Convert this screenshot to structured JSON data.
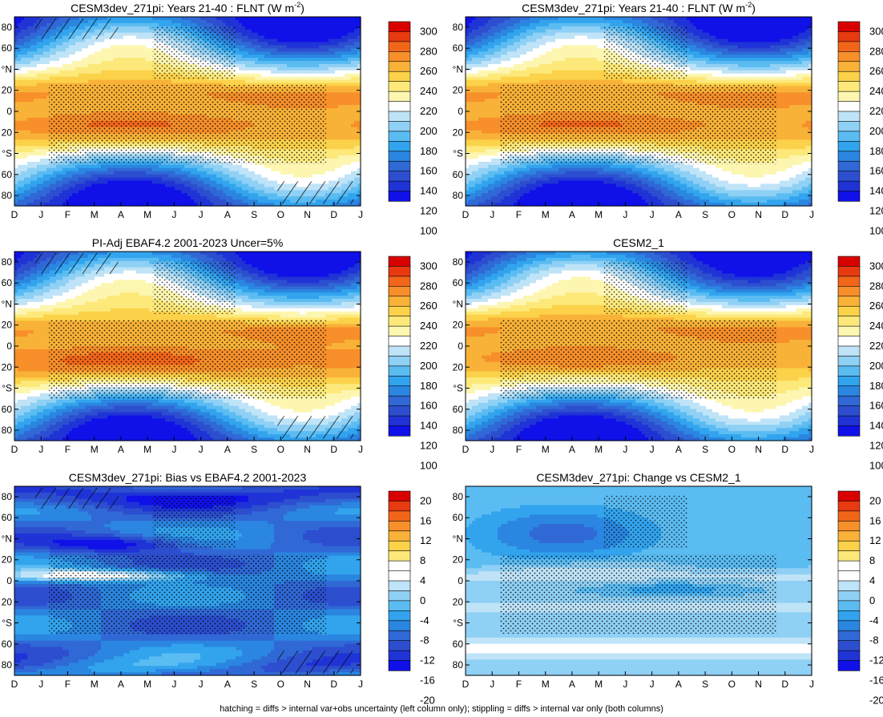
{
  "figure_caption": "hatching = diffs > internal var+obs uncertainty (left column only); stippling = diffs > internal var only (both columns)",
  "colorbars": {
    "absolute": {
      "labels": [
        "300",
        "280",
        "260",
        "240",
        "220",
        "200",
        "180",
        "160",
        "140",
        "120",
        "100"
      ],
      "colors": [
        "#d90000",
        "#e83a10",
        "#f2661a",
        "#f78f2a",
        "#f9b238",
        "#fbd24a",
        "#fde97a",
        "#fdf6b0",
        "#ffffff",
        "#bfe3f7",
        "#8fd0f5",
        "#5bbcf2",
        "#32a4ee",
        "#2a86e0",
        "#3068d6",
        "#2c4ecf",
        "#1f33d6",
        "#1010e8"
      ]
    },
    "difference": {
      "labels": [
        "20",
        "16",
        "12",
        "8",
        "4",
        "0",
        "-4",
        "-8",
        "-12",
        "-16",
        "-20"
      ],
      "colors": [
        "#d90000",
        "#e83a10",
        "#f2661a",
        "#f78f2a",
        "#f9b238",
        "#fbd24a",
        "#fde97a",
        "#ffffff",
        "#ffffff",
        "#bfe3f7",
        "#8fd0f5",
        "#5bbcf2",
        "#32a4ee",
        "#2a86e0",
        "#3068d6",
        "#2c4ecf",
        "#1f33d6",
        "#1010e8"
      ]
    }
  },
  "chart_data": [
    {
      "type": "heatmap",
      "title": "CESM3dev_271pi: Years 21-40 : FLNT (W m",
      "title_sup": "-2",
      "title_end": ")",
      "x_tick_labels": [
        "D",
        "J",
        "F",
        "M",
        "A",
        "M",
        "J",
        "J",
        "A",
        "S",
        "O",
        "N",
        "D",
        "J"
      ],
      "y_tick_labels": [
        "80",
        "60",
        "°N",
        "20",
        "0",
        "20",
        "°S",
        "60",
        "80"
      ],
      "ylim": [
        -90,
        90
      ],
      "colorbar": "absolute",
      "field": "olr_cesm3",
      "hatching": true,
      "stippling": true
    },
    {
      "type": "heatmap",
      "title": "CESM3dev_271pi: Years 21-40 : FLNT (W m",
      "title_sup": "-2",
      "title_end": ")",
      "x_tick_labels": [
        "D",
        "J",
        "F",
        "M",
        "A",
        "M",
        "J",
        "J",
        "A",
        "S",
        "O",
        "N",
        "D",
        "J"
      ],
      "y_tick_labels": [
        "80",
        "60",
        "°N",
        "20",
        "0",
        "20",
        "°S",
        "60",
        "80"
      ],
      "ylim": [
        -90,
        90
      ],
      "colorbar": "absolute",
      "field": "olr_cesm3",
      "hatching": false,
      "stippling": true
    },
    {
      "type": "heatmap",
      "title": "PI-Adj EBAF4.2 2001-2023 Uncer=5%",
      "title_sup": "",
      "title_end": "",
      "x_tick_labels": [
        "D",
        "J",
        "F",
        "M",
        "A",
        "M",
        "J",
        "J",
        "A",
        "S",
        "O",
        "N",
        "D",
        "J"
      ],
      "y_tick_labels": [
        "80",
        "60",
        "°N",
        "20",
        "0",
        "20",
        "°S",
        "60",
        "80"
      ],
      "ylim": [
        -90,
        90
      ],
      "colorbar": "absolute",
      "field": "olr_obs",
      "hatching": true,
      "stippling": true
    },
    {
      "type": "heatmap",
      "title": "CESM2_1",
      "title_sup": "",
      "title_end": "",
      "x_tick_labels": [
        "D",
        "J",
        "F",
        "M",
        "A",
        "M",
        "J",
        "J",
        "A",
        "S",
        "O",
        "N",
        "D",
        "J"
      ],
      "y_tick_labels": [
        "80",
        "60",
        "°N",
        "20",
        "0",
        "20",
        "°S",
        "60",
        "80"
      ],
      "ylim": [
        -90,
        90
      ],
      "colorbar": "absolute",
      "field": "olr_cesm2",
      "hatching": false,
      "stippling": true
    },
    {
      "type": "heatmap",
      "title": "CESM3dev_271pi: Bias vs EBAF4.2 2001-2023",
      "title_sup": "",
      "title_end": "",
      "x_tick_labels": [
        "D",
        "J",
        "F",
        "M",
        "A",
        "M",
        "J",
        "J",
        "A",
        "S",
        "O",
        "N",
        "D",
        "J"
      ],
      "y_tick_labels": [
        "80",
        "60",
        "°N",
        "20",
        "0",
        "20",
        "°S",
        "60",
        "80"
      ],
      "ylim": [
        -90,
        90
      ],
      "colorbar": "difference",
      "field": "bias_obs",
      "hatching": true,
      "stippling": true
    },
    {
      "type": "heatmap",
      "title": "CESM3dev_271pi: Change vs CESM2_1",
      "title_sup": "",
      "title_end": "",
      "x_tick_labels": [
        "D",
        "J",
        "F",
        "M",
        "A",
        "M",
        "J",
        "J",
        "A",
        "S",
        "O",
        "N",
        "D",
        "J"
      ],
      "y_tick_labels": [
        "80",
        "60",
        "°N",
        "20",
        "0",
        "20",
        "°S",
        "60",
        "80"
      ],
      "ylim": [
        -90,
        90
      ],
      "colorbar": "difference",
      "field": "change_cesm2",
      "hatching": false,
      "stippling": true
    }
  ]
}
